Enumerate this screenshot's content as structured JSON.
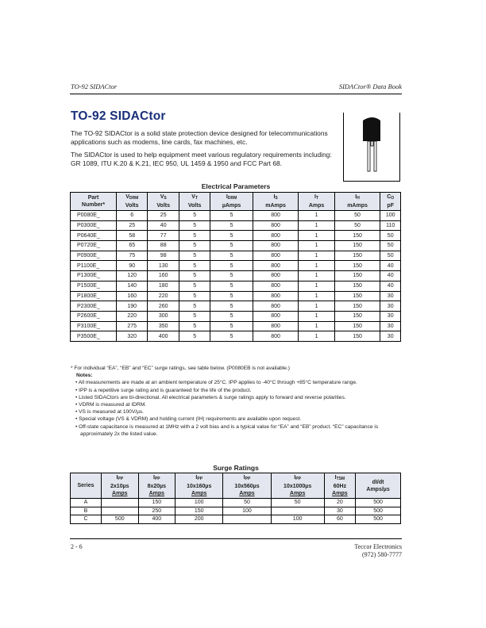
{
  "header": {
    "left": "TO-92 SIDACtor",
    "right": "SIDACtor® Data Book"
  },
  "title": "TO-92 SIDACtor",
  "intro": [
    "The TO-92 SIDACtor is a solid state protection device designed for telecommunications applications such as modems, line cards, fax machines, etc.",
    "The SIDACtor is used to help equipment meet various regulatory requirements including: GR 1089, ITU K.20 & K.21, IEC 950, UL 1459 & 1950 and FCC Part 68."
  ],
  "image": {
    "icon": "to-92-package-icon"
  },
  "electrical": {
    "caption": "Electrical Parameters",
    "headers": [
      {
        "m": "Part",
        "s": "",
        "u": "Number*"
      },
      {
        "m": "V",
        "s": "DRM",
        "u": "Volts"
      },
      {
        "m": "V",
        "s": "S",
        "u": "Volts"
      },
      {
        "m": "V",
        "s": "T",
        "u": "Volts"
      },
      {
        "m": "I",
        "s": "DRM",
        "u": "µAmps"
      },
      {
        "m": "I",
        "s": "S",
        "u": "mAmps"
      },
      {
        "m": "I",
        "s": "T",
        "u": "Amps"
      },
      {
        "m": "I",
        "s": "H",
        "u": "mAmps"
      },
      {
        "m": "C",
        "s": "O",
        "u": "pF"
      }
    ],
    "rows": [
      [
        "P0080E_",
        "6",
        "25",
        "5",
        "5",
        "800",
        "1",
        "50",
        "100"
      ],
      [
        "P0300E_",
        "25",
        "40",
        "5",
        "5",
        "800",
        "1",
        "50",
        "110"
      ],
      [
        "P0640E_",
        "58",
        "77",
        "5",
        "5",
        "800",
        "1",
        "150",
        "50"
      ],
      [
        "P0720E_",
        "65",
        "88",
        "5",
        "5",
        "800",
        "1",
        "150",
        "50"
      ],
      [
        "P0900E_",
        "75",
        "98",
        "5",
        "5",
        "800",
        "1",
        "150",
        "50"
      ],
      [
        "P1100E_",
        "90",
        "130",
        "5",
        "5",
        "800",
        "1",
        "150",
        "40"
      ],
      [
        "P1300E_",
        "120",
        "160",
        "5",
        "5",
        "800",
        "1",
        "150",
        "40"
      ],
      [
        "P1500E_",
        "140",
        "180",
        "5",
        "5",
        "800",
        "1",
        "150",
        "40"
      ],
      [
        "P1800E_",
        "160",
        "220",
        "5",
        "5",
        "800",
        "1",
        "150",
        "30"
      ],
      [
        "P2300E_",
        "190",
        "260",
        "5",
        "5",
        "800",
        "1",
        "150",
        "30"
      ],
      [
        "P2600E_",
        "220",
        "300",
        "5",
        "5",
        "800",
        "1",
        "150",
        "30"
      ],
      [
        "P3100E_",
        "275",
        "350",
        "5",
        "5",
        "800",
        "1",
        "150",
        "30"
      ],
      [
        "P3500E_",
        "320",
        "400",
        "5",
        "5",
        "800",
        "1",
        "150",
        "30"
      ]
    ]
  },
  "footnote": "* For individual “EA”, “EB” and “EC” surge ratings, see table below. (P0080EB is not available.)",
  "notes_label": "Notes:",
  "notes": [
    "• All measurements are made at an ambient temperature of 25°C. IPP applies to -40°C through +85°C temperature range.",
    "• IPP is a repetitive surge rating and is guaranteed for the life of the product.",
    "• Listed SIDACtors are bi-directional. All electrical parameters & surge ratings apply to forward and reverse polarities.",
    "• VDRM is measured at IDRM.",
    "• VS is measured at 100V/µs.",
    "• Special voltage (VS & VDRM) and holding current (IH) requirements are available upon request.",
    "• Off-state capacitance is measured at 1MHz with a 2 volt bias and is a typical value for “EA” and “EB” product. “EC” capacitance is approximately 2x the listed value."
  ],
  "surge": {
    "caption": "Surge Ratings",
    "headers": [
      {
        "m": "Series",
        "s": "",
        "l2": "",
        "u": ""
      },
      {
        "m": "I",
        "s": "PP",
        "l2": "2x10µs",
        "u": "Amps"
      },
      {
        "m": "I",
        "s": "PP",
        "l2": "8x20µs",
        "u": "Amps"
      },
      {
        "m": "I",
        "s": "PP",
        "l2": "10x160µs",
        "u": "Amps"
      },
      {
        "m": "I",
        "s": "PP",
        "l2": "10x560µs",
        "u": "Amps"
      },
      {
        "m": "I",
        "s": "PP",
        "l2": "10x1000µs",
        "u": "Amps"
      },
      {
        "m": "I",
        "s": "TSM",
        "l2": "60Hz",
        "u": "Amps"
      },
      {
        "m": "dI/dt",
        "s": "",
        "l2": "Amps/µs",
        "u": ""
      }
    ],
    "rows": [
      [
        "A",
        "",
        "150",
        "100",
        "50",
        "50",
        "20",
        "500"
      ],
      [
        "B",
        "",
        "250",
        "150",
        "100",
        "",
        "30",
        "500"
      ],
      [
        "C",
        "500",
        "400",
        "200",
        "",
        "100",
        "60",
        "500"
      ]
    ]
  },
  "footer": {
    "page": "2 - 6",
    "company": "Teccor Electronics",
    "phone": "(972) 580-7777"
  }
}
